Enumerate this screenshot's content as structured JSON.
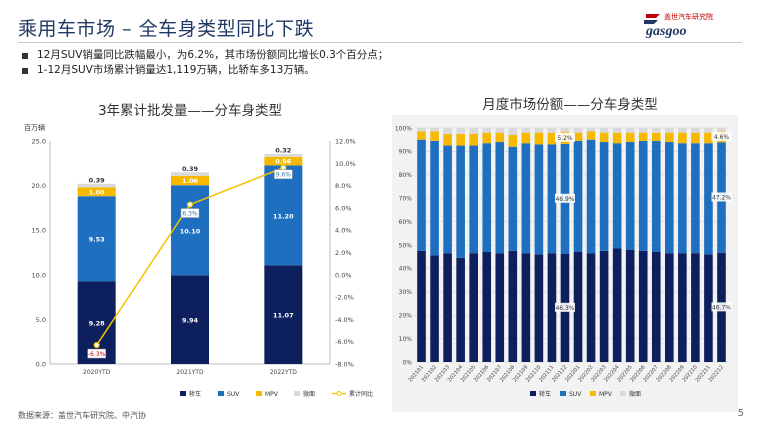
{
  "header": {
    "title": "乘用车市场 – 全车身类型同比下跌",
    "logo_brand_cn": "盖世汽车研究院",
    "logo_brand_en": "gasgoo"
  },
  "bullets": [
    "12月SUV销量同比跌幅最小，为6.2%，其市场份额同比增长0.3个百分点；",
    "1-12月SUV市场累计销量达1,119万辆，比轿车多13万辆。"
  ],
  "footer": {
    "source": "数据来源：盖世汽车研究院、中汽协",
    "page": "5"
  },
  "colors": {
    "sedan": "#0d1f5c",
    "suv": "#1f6fc0",
    "mpv": "#f7b900",
    "crossover": "#d9d9d9",
    "growth_line": "#f2c200",
    "title": "#1f3864",
    "logo_red": "#c00000"
  },
  "chart_data": [
    {
      "type": "bar",
      "stacked": true,
      "title": "3年累计批发量——分车身类型",
      "ylabel": "百万辆",
      "ylim": [
        0,
        25
      ],
      "yticks": [
        "0.0",
        "5.0",
        "10.0",
        "15.0",
        "20.0",
        "25.0"
      ],
      "y2lim": [
        -8,
        12
      ],
      "y2ticks": [
        "-8.0%",
        "-6.0%",
        "-4.0%",
        "-2.0%",
        "0.0%",
        "2.0%",
        "4.0%",
        "6.0%",
        "8.0%",
        "10.0%",
        "12.0%"
      ],
      "categories": [
        "2020YTD",
        "2021YTD",
        "2022YTD"
      ],
      "series": [
        {
          "name": "轿车",
          "values": [
            9.28,
            9.94,
            11.07
          ],
          "labels": [
            "9.28",
            "9.94",
            "11.07"
          ]
        },
        {
          "name": "SUV",
          "values": [
            9.53,
            10.1,
            11.2
          ],
          "labels": [
            "9.53",
            "10.10",
            "11.20"
          ]
        },
        {
          "name": "MPV",
          "values": [
            1.0,
            1.06,
            0.96
          ],
          "labels": [
            "1.00",
            "1.06",
            "0.96"
          ]
        },
        {
          "name": "微面",
          "values": [
            0.39,
            0.39,
            0.32
          ],
          "labels": [
            "0.39",
            "0.39",
            "0.32"
          ]
        }
      ],
      "line": {
        "name": "累计同比",
        "values": [
          -6.3,
          6.3,
          9.6
        ],
        "labels": [
          "-6.3%",
          "6.3%",
          "9.6%"
        ]
      },
      "grid": false,
      "legend": "bottom"
    },
    {
      "type": "bar",
      "stacked": true,
      "title": "月度市场份额——分车身类型",
      "ylim": [
        0,
        100
      ],
      "yticks": [
        "0%",
        "10%",
        "20%",
        "30%",
        "40%",
        "50%",
        "60%",
        "70%",
        "80%",
        "90%",
        "100%"
      ],
      "categories": [
        "202101",
        "202102",
        "202103",
        "202104",
        "202105",
        "202106",
        "202107",
        "202108",
        "202109",
        "202110",
        "202111",
        "202112",
        "202201",
        "202202",
        "202203",
        "202204",
        "202205",
        "202206",
        "202207",
        "202208",
        "202209",
        "202210",
        "202211",
        "202212"
      ],
      "series": [
        {
          "name": "轿车",
          "values": [
            47.5,
            45.5,
            46.5,
            44.5,
            46.5,
            47,
            46.5,
            47.5,
            46.5,
            46,
            46.5,
            46.3,
            47,
            46.5,
            47.5,
            48.5,
            48,
            47.5,
            47,
            46.5,
            46.5,
            46.5,
            46,
            46.7
          ]
        },
        {
          "name": "SUV",
          "values": [
            47.5,
            49,
            46,
            48,
            46,
            46.5,
            47.5,
            44.5,
            47,
            47,
            46.5,
            46.9,
            47.5,
            48.5,
            46.5,
            45,
            46,
            47,
            47.5,
            47.5,
            47,
            47,
            47.5,
            47.2
          ]
        },
        {
          "name": "MPV",
          "values": [
            3.5,
            4,
            5,
            5,
            5,
            4.5,
            4,
            5,
            4.5,
            5,
            5,
            5.2,
            3.5,
            3.5,
            4,
            4.5,
            4,
            3.5,
            3.5,
            4,
            4.5,
            4.5,
            4.5,
            4.6
          ]
        },
        {
          "name": "微面",
          "values": [
            1.5,
            1.5,
            2.5,
            2.5,
            2.5,
            2,
            2,
            3,
            2,
            2,
            2,
            1.6,
            2,
            1.5,
            2,
            2,
            2,
            2,
            2,
            2,
            2,
            2,
            2,
            1.5
          ]
        }
      ],
      "annotations": [
        {
          "category": "202112",
          "series": "轿车",
          "label": "46.3%"
        },
        {
          "category": "202112",
          "series": "SUV",
          "label": "46.9%"
        },
        {
          "category": "202112",
          "series": "MPV",
          "label": "5.2%"
        },
        {
          "category": "202212",
          "series": "轿车",
          "label": "46.7%"
        },
        {
          "category": "202212",
          "series": "SUV",
          "label": "47.2%"
        },
        {
          "category": "202212",
          "series": "MPV",
          "label": "4.6%"
        }
      ],
      "grid": true,
      "legend": "bottom"
    }
  ]
}
